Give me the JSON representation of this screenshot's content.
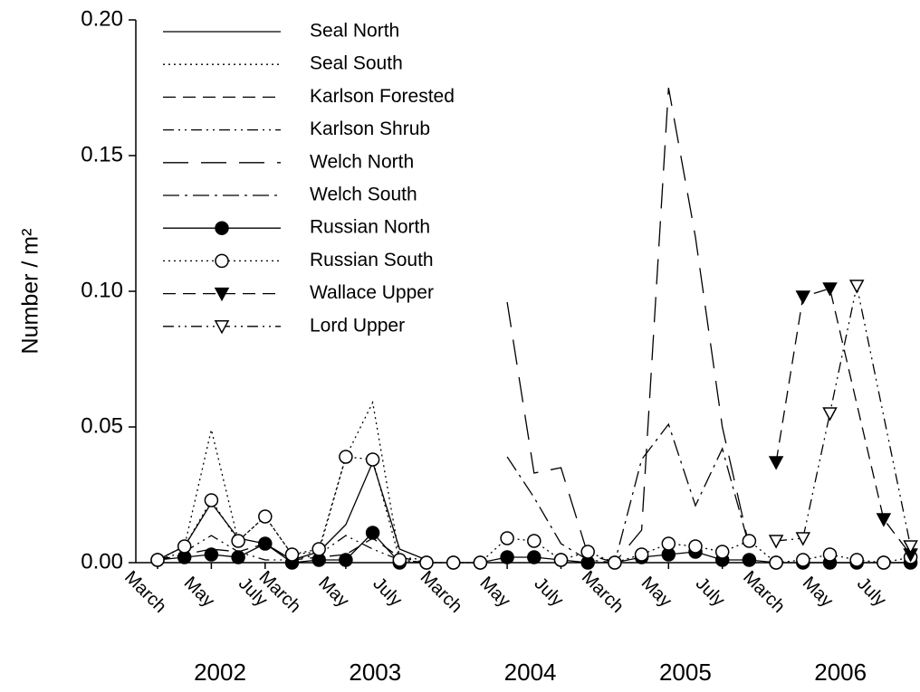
{
  "chart_data": {
    "type": "line",
    "y_label": "Number / m²",
    "categories": [
      "March",
      null,
      "May",
      null,
      "July",
      "March",
      null,
      "May",
      null,
      "July",
      null,
      "March",
      null,
      "May",
      null,
      "July",
      null,
      "March",
      null,
      "May",
      null,
      "July",
      null,
      "March",
      null,
      "May",
      null,
      "July",
      null
    ],
    "x_groups": [
      "2002",
      "2003",
      "2004",
      "2005",
      "2006"
    ],
    "ylim": [
      0,
      0.2
    ],
    "yticks": [
      {
        "value": 0,
        "label": "0.00"
      },
      {
        "value": 0.05,
        "label": "0.05"
      },
      {
        "value": 0.1,
        "label": "0.10"
      },
      {
        "value": 0.15,
        "label": "0.15"
      },
      {
        "value": 0.2,
        "label": "0.20"
      }
    ],
    "legend": "top-left",
    "series": [
      {
        "name": "Seal North",
        "color": "#000000",
        "dash": "none",
        "marker": "none",
        "values": [
          0.001,
          0.006,
          0.022,
          0.009,
          0.007,
          0.001,
          0.004,
          0.014,
          0.037,
          0.005,
          0.001,
          null,
          null,
          null,
          null,
          null,
          null,
          null,
          null,
          null,
          null,
          null,
          null,
          null,
          null,
          null,
          null,
          null,
          null
        ]
      },
      {
        "name": "Seal South",
        "color": "#000000",
        "dash": "2,4",
        "marker": "none",
        "values": [
          0.001,
          0.006,
          0.049,
          0.008,
          0.017,
          0.003,
          0.004,
          0.039,
          0.059,
          0.002,
          0.001,
          null,
          null,
          null,
          null,
          null,
          null,
          null,
          null,
          null,
          null,
          null,
          null,
          null,
          null,
          null,
          null,
          null,
          null
        ]
      },
      {
        "name": "Karlson Forested",
        "color": "#000000",
        "dash": "14,8",
        "marker": "none",
        "values": [
          0.001,
          0.003,
          0.005,
          0.004,
          0.007,
          0.001,
          0.002,
          0.003,
          0.009,
          0.002,
          0.0,
          null,
          null,
          null,
          null,
          null,
          null,
          null,
          null,
          null,
          null,
          null,
          null,
          null,
          null,
          null,
          null,
          null,
          null
        ]
      },
      {
        "name": "Karlson Shrub",
        "color": "#000000",
        "dash": "12,5,2,5,2,5",
        "marker": "none",
        "values": [
          0.001,
          0.004,
          0.01,
          0.004,
          0.001,
          0.001,
          0.003,
          0.01,
          0.005,
          0.001,
          0.0,
          null,
          null,
          null,
          null,
          null,
          null,
          null,
          null,
          null,
          null,
          null,
          null,
          null,
          null,
          null,
          null,
          null,
          null
        ]
      },
      {
        "name": "Welch North",
        "color": "#000000",
        "dash": "28,14",
        "marker": "none",
        "values": [
          null,
          null,
          null,
          null,
          null,
          null,
          null,
          null,
          null,
          null,
          null,
          null,
          null,
          0.096,
          0.033,
          0.035,
          0.003,
          0.0,
          0.012,
          0.175,
          0.12,
          0.05,
          0.006,
          null,
          null,
          null,
          null,
          null,
          null
        ]
      },
      {
        "name": "Welch South",
        "color": "#000000",
        "dash": "18,6,3,6",
        "marker": "none",
        "values": [
          null,
          null,
          null,
          null,
          null,
          null,
          null,
          null,
          null,
          null,
          null,
          null,
          null,
          0.039,
          0.024,
          0.007,
          0.001,
          0.0,
          0.038,
          0.051,
          0.021,
          0.042,
          0.006,
          null,
          null,
          null,
          null,
          null,
          null
        ]
      },
      {
        "name": "Russian North",
        "color": "#000000",
        "dash": "none",
        "marker": "filled-circle",
        "values": [
          0.001,
          0.002,
          0.003,
          0.002,
          0.007,
          0.0,
          0.001,
          0.001,
          0.011,
          0.0,
          0.0,
          0.0,
          0.0,
          0.002,
          0.002,
          0.001,
          0.0,
          0.0,
          0.002,
          0.003,
          0.004,
          0.001,
          0.001,
          0.0,
          0.0,
          0.0,
          0.0,
          0.0,
          0.0
        ]
      },
      {
        "name": "Russian South",
        "color": "#000000",
        "dash": "2,4",
        "marker": "open-circle",
        "values": [
          0.001,
          0.006,
          0.023,
          0.008,
          0.017,
          0.003,
          0.005,
          0.039,
          0.038,
          0.001,
          0.0,
          0.0,
          0.0,
          0.009,
          0.008,
          0.001,
          0.004,
          0.0,
          0.003,
          0.007,
          0.006,
          0.004,
          0.008,
          0.0,
          0.001,
          0.003,
          0.001,
          0.0,
          0.002
        ]
      },
      {
        "name": "Wallace Upper",
        "color": "#000000",
        "dash": "14,8",
        "marker": "filled-triangle",
        "x": [
          23,
          24,
          25,
          27,
          28
        ],
        "values": [
          0.037,
          0.098,
          0.101,
          0.016,
          0.003
        ]
      },
      {
        "name": "Lord Upper",
        "color": "#000000",
        "dash": "12,5,2,5,2,5",
        "marker": "open-triangle",
        "x": [
          23,
          24,
          25,
          26,
          28
        ],
        "values": [
          0.008,
          0.009,
          0.055,
          0.102,
          0.006
        ]
      }
    ]
  }
}
